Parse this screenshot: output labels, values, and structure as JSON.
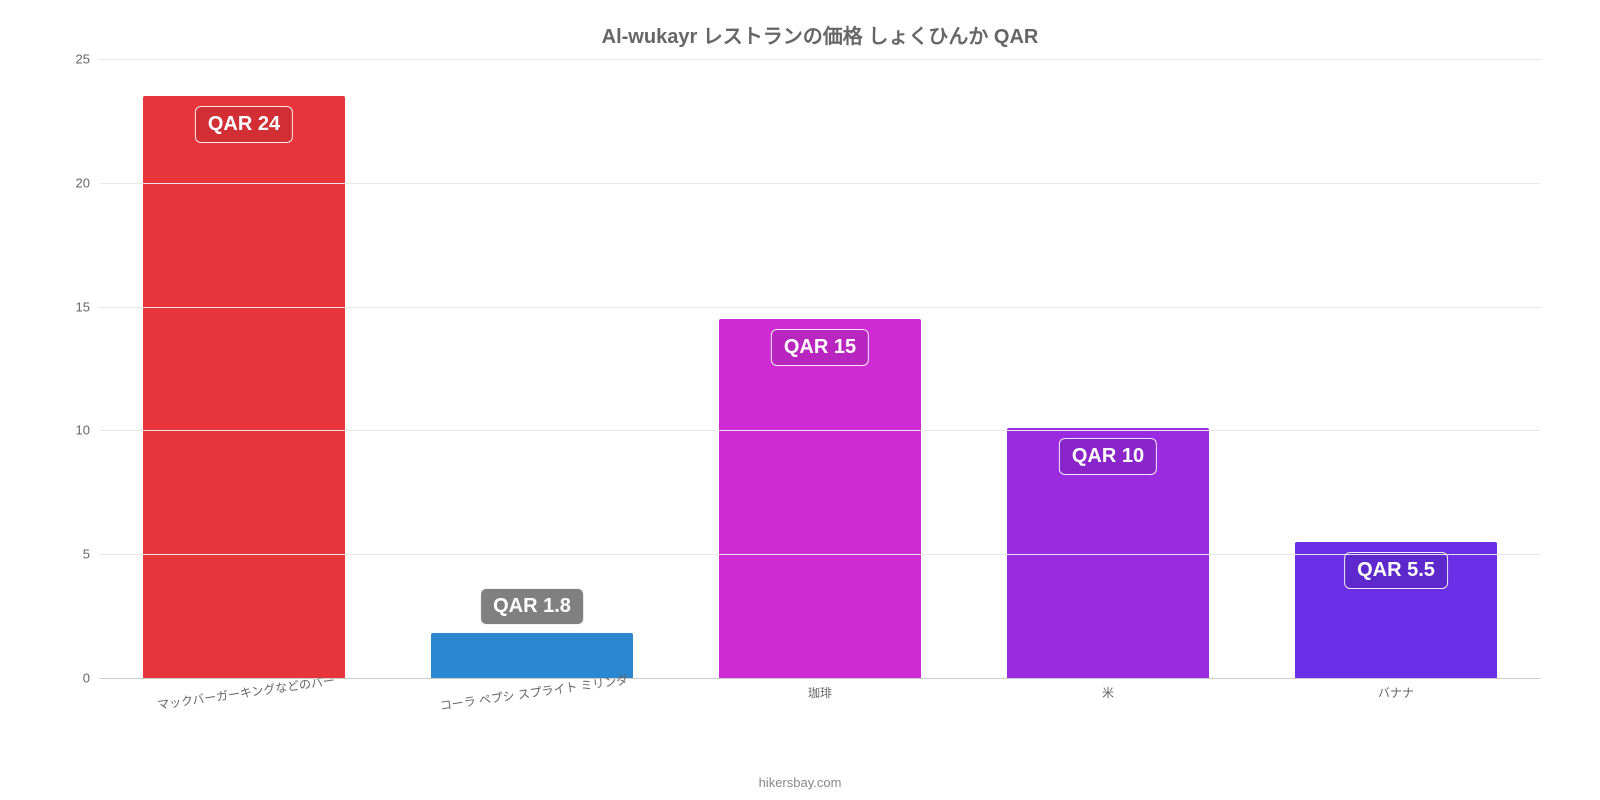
{
  "chart": {
    "type": "bar",
    "title": "Al-wukayr レストランの価格 しょくひんか QAR",
    "title_fontsize": 20,
    "title_color": "#666666",
    "background_color": "#ffffff",
    "grid_color": "#e6e6e6",
    "axis_color": "#cccccc",
    "tick_color": "#666666",
    "tick_fontsize": 13,
    "xlabel_fontsize": 12,
    "bar_width_pct": 70,
    "ylim": [
      0,
      25
    ],
    "ytick_step": 5,
    "yticks": [
      0,
      5,
      10,
      15,
      20,
      25
    ],
    "categories": [
      "マックバーガーキングなどのバー",
      "コーラ ペプシ スプライト ミリンダ",
      "珈琲",
      "米",
      "バナナ"
    ],
    "values": [
      23.5,
      1.8,
      14.5,
      10.1,
      5.5
    ],
    "bar_colors": [
      "#e8353c",
      "#2a87d0",
      "#cf2bd5",
      "#9b2be0",
      "#6a2fe6"
    ],
    "value_labels": [
      "QAR 24",
      "QAR 1.8",
      "QAR 15",
      "QAR 10",
      "QAR 5.5"
    ],
    "value_label_bg": [
      "#d12f35",
      "#808080",
      "#b926bf",
      "#8a26c9",
      "#5e29cc"
    ],
    "value_label_fontsize": 20,
    "value_label_color": "#ffffff",
    "x_rotate_first_n": 2,
    "credit": "hikersbay.com",
    "credit_color": "#888888",
    "credit_fontsize": 13
  }
}
